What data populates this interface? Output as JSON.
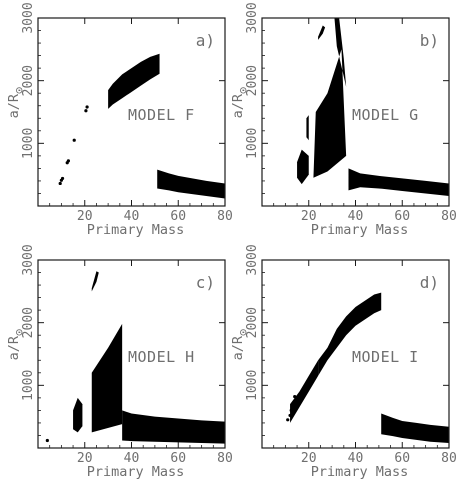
{
  "figure": {
    "background": "#ffffff",
    "frame_color": "#1a1a1a",
    "ink_color": "#000000",
    "text_color": "#6f6f6f"
  },
  "chart_data": [
    {
      "type": "scatter",
      "panel": "a)",
      "model": "MODEL F",
      "xlabel": "Primary Mass",
      "ylabel_main": "a/R",
      "ylabel_sub": "⊙",
      "xlim": [
        0,
        80
      ],
      "ylim": [
        0,
        3000
      ],
      "xticks": [
        20,
        40,
        60,
        80
      ],
      "yticks": [
        1000,
        2000,
        3000
      ],
      "xtick_labels": [
        "20",
        "40",
        "60",
        "80"
      ],
      "ytick_labels": [
        "1000",
        "2000",
        "3000"
      ],
      "regions": [
        {
          "kind": "band",
          "x": [
            30,
            32,
            36,
            40,
            44,
            48,
            52
          ],
          "y_low": [
            1550,
            1620,
            1720,
            1820,
            1920,
            2020,
            2110
          ],
          "y_high": [
            1850,
            1950,
            2100,
            2200,
            2300,
            2380,
            2430
          ]
        },
        {
          "kind": "band",
          "x": [
            51,
            56,
            60,
            66,
            72,
            80
          ],
          "y_low": [
            280,
            250,
            220,
            190,
            160,
            120
          ],
          "y_high": [
            580,
            520,
            480,
            440,
            400,
            360
          ]
        },
        {
          "kind": "dots",
          "points": [
            [
              9.5,
              360
            ],
            [
              10,
              410
            ],
            [
              10.5,
              440
            ],
            [
              12.5,
              690
            ],
            [
              13,
              720
            ],
            [
              15.5,
              1050
            ],
            [
              20.5,
              1520
            ],
            [
              21,
              1580
            ]
          ]
        }
      ]
    },
    {
      "type": "scatter",
      "panel": "b)",
      "model": "MODEL G",
      "xlabel": "Primary Mass",
      "ylabel_main": "a/R",
      "ylabel_sub": "⊙",
      "xlim": [
        0,
        80
      ],
      "ylim": [
        0,
        3000
      ],
      "xticks": [
        20,
        40,
        60,
        80
      ],
      "yticks": [
        1000,
        2000,
        3000
      ],
      "xtick_labels": [
        "20",
        "40",
        "60",
        "80"
      ],
      "ytick_labels": [
        "1000",
        "2000",
        "3000"
      ],
      "regions": [
        {
          "kind": "polygon",
          "points": [
            [
              15,
              450
            ],
            [
              17,
              350
            ],
            [
              20,
              500
            ],
            [
              20,
              800
            ],
            [
              17,
              900
            ],
            [
              15,
              700
            ]
          ]
        },
        {
          "kind": "polygon",
          "points": [
            [
              22,
              450
            ],
            [
              28,
              550
            ],
            [
              36,
              800
            ],
            [
              36,
              1900
            ],
            [
              32,
              2550
            ],
            [
              31,
              3000
            ],
            [
              33,
              3000
            ],
            [
              35,
              2350
            ],
            [
              36,
              1900
            ],
            [
              36,
              800
            ],
            [
              34,
              2500
            ],
            [
              28,
              1800
            ],
            [
              23,
              1500
            ]
          ]
        },
        {
          "kind": "polygon",
          "points": [
            [
              19,
              1100
            ],
            [
              20,
              1050
            ],
            [
              20,
              1450
            ],
            [
              19,
              1400
            ]
          ]
        },
        {
          "kind": "polygon",
          "points": [
            [
              24,
              2650
            ],
            [
              26,
              2750
            ],
            [
              27,
              2850
            ],
            [
              26,
              2880
            ],
            [
              24,
              2700
            ]
          ]
        },
        {
          "kind": "band",
          "x": [
            37,
            42,
            50,
            60,
            70,
            80
          ],
          "y_low": [
            250,
            300,
            280,
            240,
            200,
            160
          ],
          "y_high": [
            600,
            520,
            480,
            440,
            400,
            360
          ]
        }
      ]
    },
    {
      "type": "scatter",
      "panel": "c)",
      "model": "MODEL H",
      "xlabel": "Primary Mass",
      "ylabel_main": "a/R",
      "ylabel_sub": "⊙",
      "xlim": [
        0,
        80
      ],
      "ylim": [
        0,
        3000
      ],
      "xticks": [
        20,
        40,
        60,
        80
      ],
      "yticks": [
        1000,
        2000,
        3000
      ],
      "xtick_labels": [
        "20",
        "40",
        "60",
        "80"
      ],
      "ytick_labels": [
        "1000",
        "2000",
        "3000"
      ],
      "regions": [
        {
          "kind": "polygon",
          "points": [
            [
              15,
              300
            ],
            [
              17,
              250
            ],
            [
              19,
              350
            ],
            [
              19,
              700
            ],
            [
              17,
              800
            ],
            [
              15,
              600
            ]
          ]
        },
        {
          "kind": "polygon",
          "points": [
            [
              23,
              250
            ],
            [
              36,
              380
            ],
            [
              36,
              1980
            ],
            [
              30,
              1600
            ],
            [
              23,
              1200
            ]
          ]
        },
        {
          "kind": "polygon",
          "points": [
            [
              23,
              2500
            ],
            [
              25,
              2650
            ],
            [
              26,
              2800
            ],
            [
              25,
              2820
            ],
            [
              23,
              2550
            ]
          ]
        },
        {
          "kind": "band",
          "x": [
            36,
            40,
            50,
            60,
            70,
            80
          ],
          "y_low": [
            120,
            110,
            100,
            90,
            80,
            70
          ],
          "y_high": [
            600,
            550,
            500,
            470,
            440,
            420
          ]
        },
        {
          "kind": "dots",
          "points": [
            [
              4,
              120
            ]
          ]
        }
      ]
    },
    {
      "type": "scatter",
      "panel": "d)",
      "model": "MODEL I",
      "xlabel": "Primary Mass",
      "ylabel_main": "a/R",
      "ylabel_sub": "⊙",
      "xlim": [
        0,
        80
      ],
      "ylim": [
        0,
        3000
      ],
      "xticks": [
        20,
        40,
        60,
        80
      ],
      "yticks": [
        1000,
        2000,
        3000
      ],
      "xtick_labels": [
        "20",
        "40",
        "60",
        "80"
      ],
      "ytick_labels": [
        "1000",
        "2000",
        "3000"
      ],
      "regions": [
        {
          "kind": "band",
          "x": [
            24,
            28,
            32,
            36,
            40,
            44,
            48,
            51
          ],
          "y_low": [
            1150,
            1400,
            1600,
            1800,
            1950,
            2050,
            2150,
            2200
          ],
          "y_high": [
            1400,
            1600,
            1900,
            2100,
            2250,
            2350,
            2450,
            2480
          ]
        },
        {
          "kind": "band",
          "x": [
            12,
            16,
            20,
            24
          ],
          "y_low": [
            400,
            650,
            900,
            1150
          ],
          "y_high": [
            700,
            900,
            1150,
            1400
          ]
        },
        {
          "kind": "band",
          "x": [
            51,
            56,
            60,
            66,
            72,
            80
          ],
          "y_low": [
            220,
            190,
            160,
            130,
            100,
            80
          ],
          "y_high": [
            550,
            480,
            430,
            400,
            370,
            340
          ]
        },
        {
          "kind": "dots",
          "points": [
            [
              11,
              450
            ],
            [
              12,
              520
            ],
            [
              12.5,
              600
            ],
            [
              13,
              680
            ],
            [
              14,
              820
            ],
            [
              15,
              760
            ]
          ]
        }
      ]
    }
  ]
}
